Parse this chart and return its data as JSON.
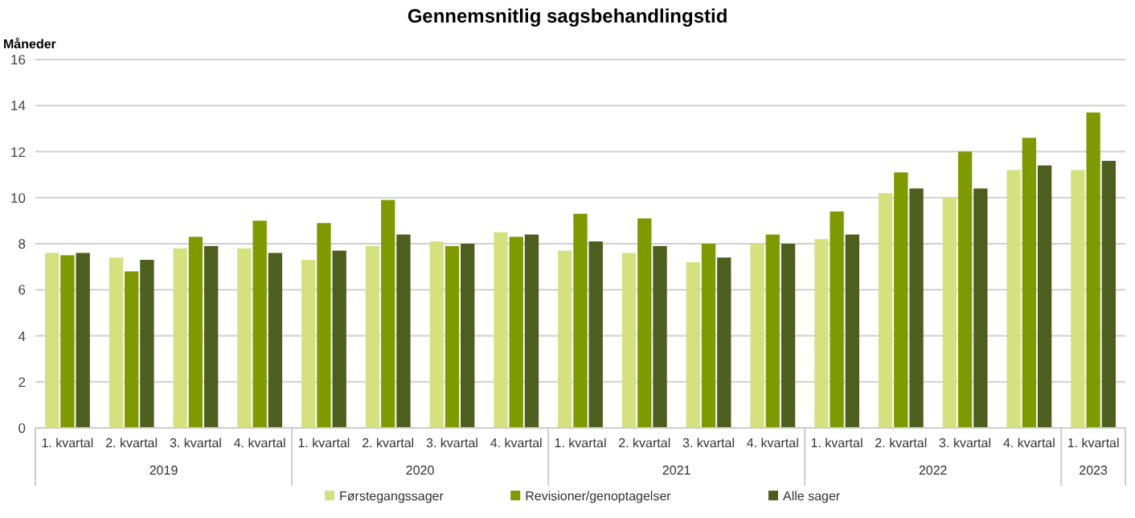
{
  "chart_data": {
    "type": "bar",
    "title": "Gennemsnitlig sagsbehandlingstid",
    "ylabel": "Måneder",
    "categories": [
      "1. kvartal",
      "2. kvartal",
      "3. kvartal",
      "4. kvartal",
      "1. kvartal",
      "2. kvartal",
      "3. kvartal",
      "4. kvartal",
      "1. kvartal",
      "2. kvartal",
      "3. kvartal",
      "4. kvartal",
      "1. kvartal",
      "2. kvartal",
      "3. kvartal",
      "4. kvartal",
      "1. kvartal"
    ],
    "series": [
      {
        "name": "Førstegangssager",
        "color": "#d4e17f",
        "values": [
          7.6,
          7.4,
          7.8,
          7.8,
          7.3,
          7.9,
          8.1,
          8.5,
          7.7,
          7.6,
          7.2,
          8.0,
          8.2,
          10.2,
          10.0,
          11.2,
          11.2
        ]
      },
      {
        "name": "Revisioner/genoptagelser",
        "color": "#7f9a00",
        "values": [
          7.5,
          6.8,
          8.3,
          9.0,
          8.9,
          9.9,
          7.9,
          8.3,
          9.3,
          9.1,
          8.0,
          8.4,
          9.4,
          11.1,
          12.0,
          12.6,
          13.7
        ]
      },
      {
        "name": "Alle sager",
        "color": "#4e5e1f",
        "values": [
          7.6,
          7.3,
          7.9,
          7.6,
          7.7,
          8.4,
          8.0,
          8.4,
          8.1,
          7.9,
          7.4,
          8.0,
          8.4,
          10.4,
          10.4,
          11.4,
          11.6
        ]
      }
    ],
    "annotations": [
      "2019",
      "2020",
      "2021",
      "2022",
      "2023"
    ],
    "ylim": [
      0,
      16
    ],
    "yticks": [
      0,
      2,
      4,
      6,
      8,
      10,
      12,
      14,
      16
    ],
    "grid": "y",
    "legend": "bottom"
  }
}
